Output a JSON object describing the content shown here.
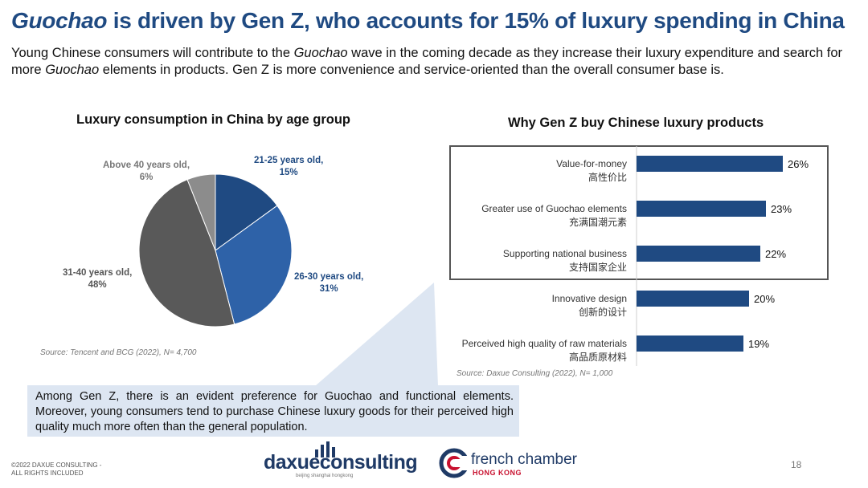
{
  "header": {
    "title_italic": "Guochao",
    "title_rest": " is driven by Gen Z, who accounts for 15% of luxury spending in China",
    "sub_1": "Young Chinese consumers will contribute to the ",
    "sub_2": "Guochao",
    "sub_3": " wave in the coming decade as they increase their luxury expenditure and search for more ",
    "sub_4": "Guochao",
    "sub_5": " elements in products. Gen Z is more convenience and service-oriented than the overall consumer base is."
  },
  "chart_data": [
    {
      "type": "pie",
      "title": "Luxury consumption in China by age group",
      "source": "Source: Tencent and BCG (2022), N= 4,700",
      "slices": [
        {
          "label": "21-25 years old,",
          "value_label": "15%",
          "value": 15,
          "color": "#1f4a82"
        },
        {
          "label": "26-30 years old,",
          "value_label": "31%",
          "value": 31,
          "color": "#2e62a8"
        },
        {
          "label": "31-40 years old,",
          "value_label": "48%",
          "value": 48,
          "color": "#595959"
        },
        {
          "label": "Above 40 years old,",
          "value_label": "6%",
          "value": 6,
          "color": "#8c8c8c"
        }
      ]
    },
    {
      "type": "bar",
      "orientation": "horizontal",
      "title": "Why Gen Z buy Chinese luxury products",
      "source": "Source: Daxue Consulting (2022), N= 1,000",
      "categories": [
        "Value-for-money",
        "Greater use of Guochao elements",
        "Supporting national business",
        "Innovative design",
        "Perceived high quality of raw materials"
      ],
      "categories_cn": [
        "高性价比",
        "充满国潮元素",
        "支持国家企业",
        "创新的设计",
        "高品质原材料"
      ],
      "values": [
        26,
        23,
        22,
        20,
        19
      ],
      "value_labels": [
        "26%",
        "23%",
        "22%",
        "20%",
        "19%"
      ],
      "xlim": [
        0,
        30
      ],
      "bar_color": "#1f4a82"
    }
  ],
  "callout": {
    "text": "Among Gen Z, there is an evident preference for Guochao and functional elements. Moreover, young consumers tend to purchase Chinese luxury goods for their perceived high quality much more often than the general population."
  },
  "footer": {
    "copyright_1": "©2022 DAXUE CONSULTING -",
    "copyright_2": "ALL RIGHTS INCLUDED",
    "daxue_1": "daxue",
    "daxue_2": "consulting",
    "daxue_tag": "beijing shanghai hongkong",
    "french_name": "french chamber",
    "french_sub": "HONG KONG",
    "page_number": "18"
  }
}
